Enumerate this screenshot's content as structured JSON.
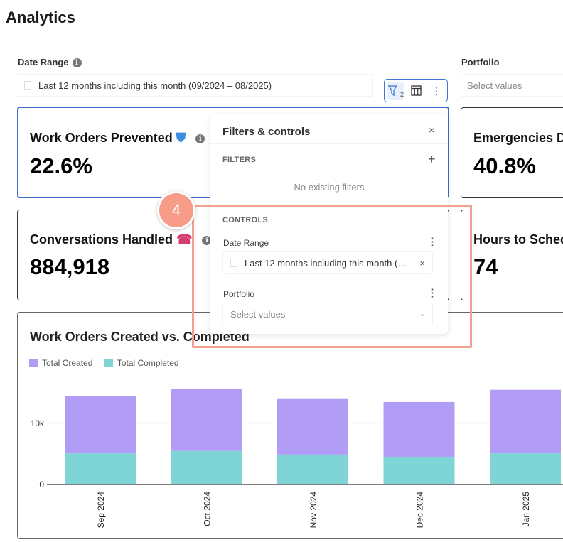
{
  "page": {
    "title": "Analytics"
  },
  "controls": {
    "date_range": {
      "label": "Date Range",
      "value": "Last 12 months including this month (09/2024 – 08/2025)"
    },
    "portfolio": {
      "label": "Portfolio",
      "placeholder": "Select values"
    }
  },
  "toolbar": {
    "filter_count": "2",
    "icons": [
      "filter-icon",
      "table-icon",
      "more-vertical-icon"
    ]
  },
  "cards": [
    {
      "title": "Work Orders Prevented",
      "emoji": "🛡",
      "value": "22.6%"
    },
    {
      "title": "Emergencies D",
      "value": "40.8%"
    },
    {
      "title": "Conversations Handled",
      "emoji": "☎",
      "value": "884,918"
    },
    {
      "title": "Hours to Sched",
      "value": "74"
    }
  ],
  "panel": {
    "title": "Filters & controls",
    "filters_header": "FILTERS",
    "no_filters": "No existing filters",
    "controls_header": "CONTROLS",
    "date_range_label": "Date Range",
    "date_range_value": "Last 12 months including this month (…",
    "portfolio_label": "Portfolio",
    "portfolio_placeholder": "Select values"
  },
  "annotation": {
    "badge": "4",
    "color": "#f4a08f"
  },
  "chart_data": {
    "type": "bar",
    "stacked": true,
    "title": "Work Orders Created vs. Completed",
    "categories": [
      "Sep 2024",
      "Oct 2024",
      "Nov 2024",
      "Dec 2024",
      "Jan 2025"
    ],
    "series": [
      {
        "name": "Total Created",
        "color": "#b19cf6",
        "values": [
          9400,
          10200,
          9200,
          9000,
          10400
        ]
      },
      {
        "name": "Total Completed",
        "color": "#7fd5d5",
        "values": [
          5100,
          5500,
          4900,
          4500,
          5100
        ]
      }
    ],
    "yticks": [
      "0",
      "10k"
    ],
    "ylim": [
      0,
      18000
    ],
    "legend": "top-left"
  }
}
